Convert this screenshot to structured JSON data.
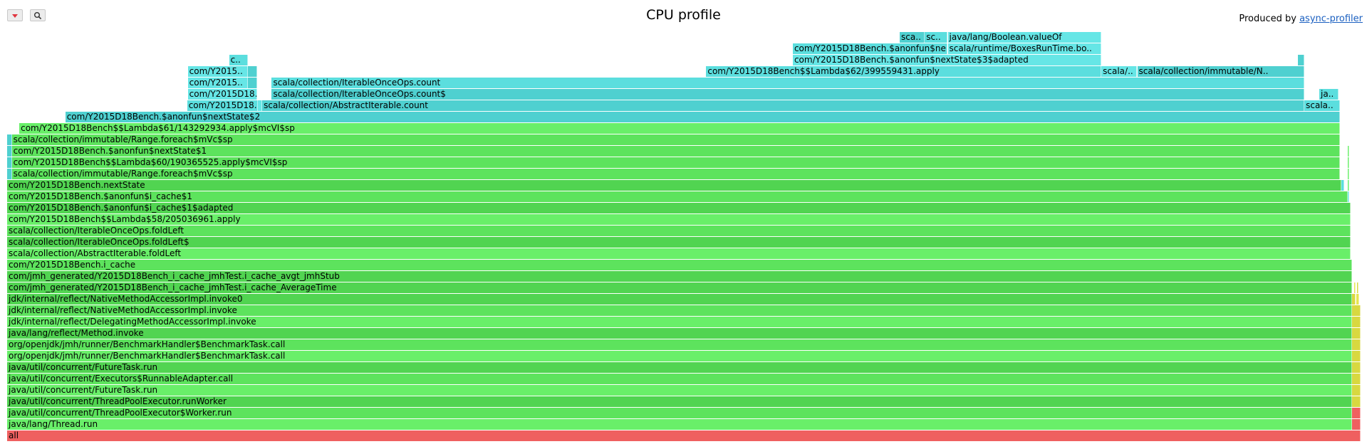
{
  "header": {
    "title": "CPU profile",
    "produced_by_prefix": "Produced by ",
    "produced_by_link": "async-profiler",
    "buttons": [
      {
        "name": "reverse-button",
        "icon": "triangle-down-icon"
      },
      {
        "name": "search-button",
        "icon": "search-icon"
      }
    ]
  },
  "colors": {
    "green": [
      "#5de35d",
      "#69ef69",
      "#51d451"
    ],
    "aqua": [
      "#5bdede",
      "#66e6e6",
      "#4fd0d0"
    ],
    "yellow": [
      "#d8d840",
      "#e6e64c"
    ],
    "red": [
      "#ef6060",
      "#e85a5a"
    ]
  },
  "flamegraph": {
    "frames": [
      {
        "row": 0,
        "start": 0.0,
        "end": 1.0,
        "label": "all",
        "color": "red"
      },
      {
        "row": 1,
        "start": 0.0,
        "end": 0.9935,
        "label": "java/lang/Thread.run",
        "color": "green"
      },
      {
        "row": 1,
        "start": 0.9935,
        "end": 1.0,
        "label": "",
        "color": "red"
      },
      {
        "row": 2,
        "start": 0.0,
        "end": 0.9935,
        "label": "java/util/concurrent/ThreadPoolExecutor$Worker.run",
        "color": "green"
      },
      {
        "row": 2,
        "start": 0.9935,
        "end": 1.0,
        "label": "",
        "color": "red"
      },
      {
        "row": 3,
        "start": 0.0,
        "end": 0.9935,
        "label": "java/util/concurrent/ThreadPoolExecutor.runWorker",
        "color": "green"
      },
      {
        "row": 3,
        "start": 0.9935,
        "end": 1.0,
        "label": "",
        "color": "yellow"
      },
      {
        "row": 4,
        "start": 0.0,
        "end": 0.9935,
        "label": "java/util/concurrent/FutureTask.run",
        "color": "green"
      },
      {
        "row": 4,
        "start": 0.9935,
        "end": 1.0,
        "label": "",
        "color": "yellow"
      },
      {
        "row": 5,
        "start": 0.0,
        "end": 0.9935,
        "label": "java/util/concurrent/Executors$RunnableAdapter.call",
        "color": "green"
      },
      {
        "row": 5,
        "start": 0.9935,
        "end": 1.0,
        "label": "",
        "color": "yellow"
      },
      {
        "row": 6,
        "start": 0.0,
        "end": 0.9935,
        "label": "java/util/concurrent/FutureTask.run",
        "color": "green"
      },
      {
        "row": 6,
        "start": 0.9935,
        "end": 1.0,
        "label": "",
        "color": "yellow"
      },
      {
        "row": 7,
        "start": 0.0,
        "end": 0.9935,
        "label": "org/openjdk/jmh/runner/BenchmarkHandler$BenchmarkTask.call",
        "color": "green"
      },
      {
        "row": 7,
        "start": 0.9935,
        "end": 1.0,
        "label": "",
        "color": "yellow"
      },
      {
        "row": 8,
        "start": 0.0,
        "end": 0.9935,
        "label": "org/openjdk/jmh/runner/BenchmarkHandler$BenchmarkTask.call",
        "color": "green"
      },
      {
        "row": 8,
        "start": 0.9935,
        "end": 1.0,
        "label": "",
        "color": "yellow"
      },
      {
        "row": 9,
        "start": 0.0,
        "end": 0.9935,
        "label": "java/lang/reflect/Method.invoke",
        "color": "green"
      },
      {
        "row": 9,
        "start": 0.9935,
        "end": 1.0,
        "label": "",
        "color": "yellow"
      },
      {
        "row": 10,
        "start": 0.0,
        "end": 0.9935,
        "label": "jdk/internal/reflect/DelegatingMethodAccessorImpl.invoke",
        "color": "green"
      },
      {
        "row": 10,
        "start": 0.9935,
        "end": 1.0,
        "label": "",
        "color": "yellow"
      },
      {
        "row": 11,
        "start": 0.0,
        "end": 0.9935,
        "label": "jdk/internal/reflect/NativeMethodAccessorImpl.invoke",
        "color": "green"
      },
      {
        "row": 11,
        "start": 0.9935,
        "end": 1.0,
        "label": "",
        "color": "yellow"
      },
      {
        "row": 12,
        "start": 0.0,
        "end": 0.9935,
        "label": "jdk/internal/reflect/NativeMethodAccessorImpl.invoke0",
        "color": "green"
      },
      {
        "row": 12,
        "start": 0.9935,
        "end": 0.9965,
        "label": "",
        "color": "yellow"
      },
      {
        "row": 12,
        "start": 0.997,
        "end": 0.999,
        "label": "",
        "color": "yellow"
      },
      {
        "row": 13,
        "start": 0.0,
        "end": 0.9935,
        "label": "com/jmh_generated/Y2015D18Bench_i_cache_jmhTest.i_cache_AverageTime",
        "color": "green"
      },
      {
        "row": 13,
        "start": 0.995,
        "end": 0.9965,
        "label": "",
        "color": "yellow"
      },
      {
        "row": 13,
        "start": 0.9972,
        "end": 0.9985,
        "label": "",
        "color": "yellow"
      },
      {
        "row": 14,
        "start": 0.0,
        "end": 0.9935,
        "label": "com/jmh_generated/Y2015D18Bench_i_cache_jmhTest.i_cache_avgt_jmhStub",
        "color": "green"
      },
      {
        "row": 15,
        "start": 0.0,
        "end": 0.9935,
        "label": "com/Y2015D18Bench.i_cache",
        "color": "green"
      },
      {
        "row": 16,
        "start": 0.0,
        "end": 0.9928,
        "label": "scala/collection/AbstractIterable.foldLeft",
        "color": "green"
      },
      {
        "row": 17,
        "start": 0.0,
        "end": 0.9928,
        "label": "scala/collection/IterableOnceOps.foldLeft$",
        "color": "green"
      },
      {
        "row": 18,
        "start": 0.0,
        "end": 0.9928,
        "label": "scala/collection/IterableOnceOps.foldLeft",
        "color": "green"
      },
      {
        "row": 19,
        "start": 0.0,
        "end": 0.9928,
        "label": "com/Y2015D18Bench$$Lambda$58/205036961.apply",
        "color": "green"
      },
      {
        "row": 20,
        "start": 0.0,
        "end": 0.9928,
        "label": "com/Y2015D18Bench.$anonfun$i_cache$1$adapted",
        "color": "green"
      },
      {
        "row": 21,
        "start": 0.0,
        "end": 0.9905,
        "label": "com/Y2015D18Bench.$anonfun$i_cache$1",
        "color": "green"
      },
      {
        "row": 21,
        "start": 0.9905,
        "end": 0.9915,
        "label": "",
        "color": "aqua"
      },
      {
        "row": 22,
        "start": 0.0,
        "end": 0.986,
        "label": "com/Y2015D18Bench.nextState",
        "color": "green"
      },
      {
        "row": 22,
        "start": 0.986,
        "end": 0.988,
        "label": "",
        "color": "aqua"
      },
      {
        "row": 22,
        "start": 0.9905,
        "end": 0.9915,
        "label": "",
        "color": "green"
      },
      {
        "row": 23,
        "start": 0.0,
        "end": 0.0035,
        "label": "",
        "color": "aqua"
      },
      {
        "row": 23,
        "start": 0.0035,
        "end": 0.985,
        "label": "scala/collection/immutable/Range.foreach$mVc$sp",
        "color": "green"
      },
      {
        "row": 23,
        "start": 0.9905,
        "end": 0.9915,
        "label": "",
        "color": "green"
      },
      {
        "row": 24,
        "start": 0.0,
        "end": 0.0035,
        "label": "",
        "color": "aqua"
      },
      {
        "row": 24,
        "start": 0.0035,
        "end": 0.985,
        "label": "com/Y2015D18Bench$$Lambda$60/190365525.apply$mcVI$sp",
        "color": "green"
      },
      {
        "row": 24,
        "start": 0.9905,
        "end": 0.9915,
        "label": "",
        "color": "green"
      },
      {
        "row": 25,
        "start": 0.0,
        "end": 0.0035,
        "label": "",
        "color": "aqua"
      },
      {
        "row": 25,
        "start": 0.0035,
        "end": 0.985,
        "label": "com/Y2015D18Bench.$anonfun$nextState$1",
        "color": "green"
      },
      {
        "row": 25,
        "start": 0.9905,
        "end": 0.9915,
        "label": "",
        "color": "green"
      },
      {
        "row": 26,
        "start": 0.0,
        "end": 0.0035,
        "label": "",
        "color": "aqua"
      },
      {
        "row": 26,
        "start": 0.0035,
        "end": 0.985,
        "label": "scala/collection/immutable/Range.foreach$mVc$sp",
        "color": "green"
      },
      {
        "row": 27,
        "start": 0.009,
        "end": 0.985,
        "label": "com/Y2015D18Bench$$Lambda$61/143292934.apply$mcVI$sp",
        "color": "green"
      },
      {
        "row": 28,
        "start": 0.043,
        "end": 0.985,
        "label": "com/Y2015D18Bench.$anonfun$nextState$2",
        "color": "aqua"
      },
      {
        "row": 29,
        "start": 0.133,
        "end": 0.1855,
        "label": "com/Y2015D18..",
        "color": "aqua"
      },
      {
        "row": 29,
        "start": 0.1855,
        "end": 0.1885,
        "label": "",
        "color": "aqua"
      },
      {
        "row": 29,
        "start": 0.1885,
        "end": 0.9585,
        "label": "scala/collection/AbstractIterable.count",
        "color": "aqua"
      },
      {
        "row": 29,
        "start": 0.9585,
        "end": 0.985,
        "label": "scala..",
        "color": "aqua"
      },
      {
        "row": 30,
        "start": 0.1335,
        "end": 0.185,
        "label": "com/Y2015D18..",
        "color": "aqua"
      },
      {
        "row": 30,
        "start": 0.1955,
        "end": 0.9585,
        "label": "scala/collection/IterableOnceOps.count$",
        "color": "aqua"
      },
      {
        "row": 30,
        "start": 0.9695,
        "end": 0.9835,
        "label": "ja..",
        "color": "aqua"
      },
      {
        "row": 31,
        "start": 0.1335,
        "end": 0.178,
        "label": "com/Y2015..",
        "color": "aqua"
      },
      {
        "row": 31,
        "start": 0.178,
        "end": 0.1845,
        "label": "",
        "color": "aqua"
      },
      {
        "row": 31,
        "start": 0.1955,
        "end": 0.9585,
        "label": "scala/collection/IterableOnceOps.count",
        "color": "aqua"
      },
      {
        "row": 32,
        "start": 0.1335,
        "end": 0.178,
        "label": "com/Y2015..",
        "color": "aqua"
      },
      {
        "row": 32,
        "start": 0.178,
        "end": 0.1845,
        "label": "",
        "color": "aqua"
      },
      {
        "row": 32,
        "start": 0.5165,
        "end": 0.8085,
        "label": "com/Y2015D18Bench$$Lambda$62/399559431.apply",
        "color": "aqua"
      },
      {
        "row": 32,
        "start": 0.8085,
        "end": 0.835,
        "label": "scala/..",
        "color": "aqua"
      },
      {
        "row": 32,
        "start": 0.835,
        "end": 0.9585,
        "label": "scala/collection/immutable/N..",
        "color": "aqua"
      },
      {
        "row": 33,
        "start": 0.164,
        "end": 0.178,
        "label": "c..",
        "color": "aqua"
      },
      {
        "row": 33,
        "start": 0.5805,
        "end": 0.8085,
        "label": "com/Y2015D18Bench.$anonfun$nextState$3$adapted",
        "color": "aqua"
      },
      {
        "row": 33,
        "start": 0.9535,
        "end": 0.9585,
        "label": "",
        "color": "aqua"
      },
      {
        "row": 34,
        "start": 0.5805,
        "end": 0.695,
        "label": "com/Y2015D18Bench.$anonfun$ne..",
        "color": "aqua"
      },
      {
        "row": 34,
        "start": 0.695,
        "end": 0.8085,
        "label": "scala/runtime/BoxesRunTime.bo..",
        "color": "aqua"
      },
      {
        "row": 35,
        "start": 0.6595,
        "end": 0.678,
        "label": "sca..",
        "color": "aqua"
      },
      {
        "row": 35,
        "start": 0.678,
        "end": 0.695,
        "label": "sc..",
        "color": "aqua"
      },
      {
        "row": 35,
        "start": 0.695,
        "end": 0.8085,
        "label": "java/lang/Boolean.valueOf",
        "color": "aqua"
      }
    ]
  }
}
